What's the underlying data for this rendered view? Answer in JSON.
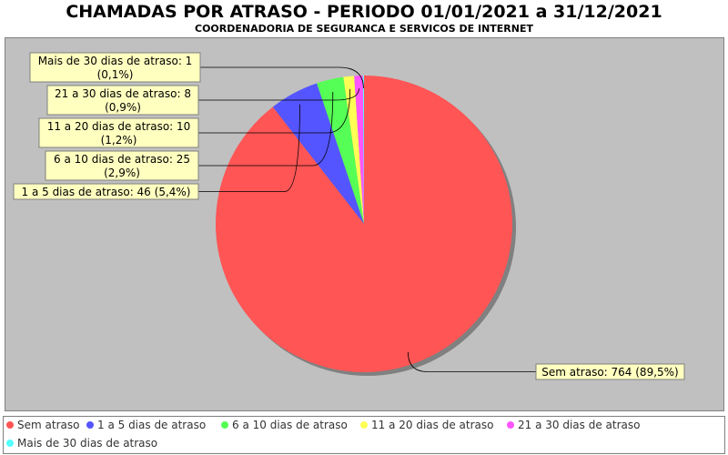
{
  "title": "CHAMADAS POR ATRASO - PERIODO 01/01/2021 a 31/12/2021",
  "subtitle": "COORDENADORIA DE SEGURANCA E SERVICOS DE INTERNET",
  "chart_data": {
    "type": "pie",
    "title": "CHAMADAS POR ATRASO - PERIODO 01/01/2021 a 31/12/2021",
    "subtitle": "COORDENADORIA DE SEGURANCA E SERVICOS DE INTERNET",
    "legend_position": "bottom",
    "slices": [
      {
        "name": "Sem atraso",
        "value": 764,
        "percent": "89,5%",
        "color": "#ff5555",
        "label": "Sem atraso: 764 (89,5%)"
      },
      {
        "name": "1 a 5 dias de atraso",
        "value": 46,
        "percent": "5,4%",
        "color": "#5555ff",
        "label": "1 a 5 dias de atraso: 46 (5,4%)"
      },
      {
        "name": "6 a 10 dias de atraso",
        "value": 25,
        "percent": "2,9%",
        "color": "#55ff55",
        "label": "6 a 10 dias de atraso: 25 (2,9%)"
      },
      {
        "name": "11 a 20 dias de atraso",
        "value": 10,
        "percent": "1,2%",
        "color": "#ffff55",
        "label": "11 a 20 dias de atraso: 10 (1,2%)"
      },
      {
        "name": "21 a 30 dias de atraso",
        "value": 8,
        "percent": "0,9%",
        "color": "#ff55ff",
        "label": "21 a 30 dias de atraso: 8 (0,9%)"
      },
      {
        "name": "Mais de 30 dias de atraso",
        "value": 1,
        "percent": "0,1%",
        "color": "#55ffff",
        "label": "Mais de 30 dias de atraso: 1 (0,1%)"
      }
    ]
  }
}
